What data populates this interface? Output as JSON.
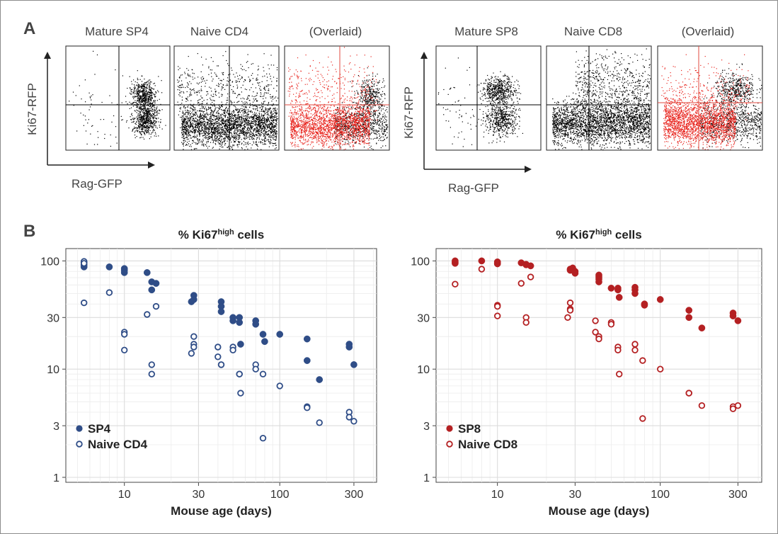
{
  "panel_a": {
    "label": "A",
    "left_group": {
      "y_axis_label": "Ki67-RFP",
      "x_axis_label": "Rag-GFP",
      "plots": [
        {
          "title": "Mature SP4"
        },
        {
          "title": "Naive CD4"
        },
        {
          "title": "(Overlaid)"
        }
      ]
    },
    "right_group": {
      "y_axis_label": "Ki67-RFP",
      "x_axis_label": "Rag-GFP",
      "plots": [
        {
          "title": "Mature SP8"
        },
        {
          "title": "Naive CD8"
        },
        {
          "title": "(Overlaid)"
        }
      ]
    },
    "colors": {
      "mature": "#000000",
      "naive": "#e8251e",
      "gate_line": "#000000",
      "gate_line_overlay": "#e04a3f"
    }
  },
  "panel_b": {
    "label": "B",
    "colors": {
      "cd4": "#2f4d87",
      "cd8": "#b42022"
    }
  },
  "chart_data": [
    {
      "type": "scatter",
      "title": "% Ki67",
      "title_sup": "high",
      "title_suffix": " cells",
      "xlabel": "Mouse age (days)",
      "ylabel": "",
      "x_scale": "log",
      "y_scale": "log",
      "xlim": [
        4.2,
        420
      ],
      "ylim": [
        0.9,
        130
      ],
      "xticks": [
        10,
        30,
        100,
        300
      ],
      "yticks": [
        1,
        3,
        10,
        30,
        100
      ],
      "grid": true,
      "legend_position": "bottom-left",
      "series": [
        {
          "name": "SP4",
          "marker": "filled",
          "color": "#2f4d87",
          "points": [
            [
              5.5,
              97
            ],
            [
              5.5,
              92
            ],
            [
              5.5,
              88
            ],
            [
              8,
              88
            ],
            [
              10,
              85
            ],
            [
              10,
              82
            ],
            [
              10,
              78
            ],
            [
              14,
              78
            ],
            [
              15,
              64
            ],
            [
              15,
              54
            ],
            [
              16,
              62
            ],
            [
              28,
              48
            ],
            [
              28,
              44
            ],
            [
              27,
              42
            ],
            [
              42,
              42
            ],
            [
              42,
              38
            ],
            [
              42,
              34
            ],
            [
              50,
              30
            ],
            [
              50,
              28
            ],
            [
              55,
              30
            ],
            [
              55,
              27
            ],
            [
              70,
              28
            ],
            [
              70,
              26
            ],
            [
              56,
              17
            ],
            [
              78,
              21
            ],
            [
              80,
              18
            ],
            [
              100,
              21
            ],
            [
              150,
              19
            ],
            [
              150,
              12
            ],
            [
              180,
              8
            ],
            [
              280,
              17
            ],
            [
              280,
              16
            ],
            [
              300,
              11
            ]
          ]
        },
        {
          "name": "Naive CD4",
          "marker": "open",
          "color": "#2f4d87",
          "points": [
            [
              5.5,
              99
            ],
            [
              5.5,
              95
            ],
            [
              5.5,
              41
            ],
            [
              8,
              51
            ],
            [
              10,
              22
            ],
            [
              10,
              21
            ],
            [
              10,
              15
            ],
            [
              14,
              32
            ],
            [
              15,
              11
            ],
            [
              15,
              9
            ],
            [
              16,
              38
            ],
            [
              28,
              20
            ],
            [
              28,
              17
            ],
            [
              28,
              16
            ],
            [
              27,
              14
            ],
            [
              40,
              16
            ],
            [
              40,
              13
            ],
            [
              42,
              11
            ],
            [
              42,
              11
            ],
            [
              50,
              16
            ],
            [
              50,
              15
            ],
            [
              55,
              9
            ],
            [
              55,
              9
            ],
            [
              56,
              6
            ],
            [
              70,
              11
            ],
            [
              70,
              10
            ],
            [
              78,
              9
            ],
            [
              78,
              2.3
            ],
            [
              100,
              7
            ],
            [
              150,
              4.5
            ],
            [
              150,
              4.4
            ],
            [
              180,
              3.2
            ],
            [
              280,
              4
            ],
            [
              280,
              3.6
            ],
            [
              300,
              3.3
            ]
          ]
        }
      ]
    },
    {
      "type": "scatter",
      "title": "% Ki67",
      "title_sup": "high",
      "title_suffix": " cells",
      "xlabel": "Mouse age (days)",
      "ylabel": "",
      "x_scale": "log",
      "y_scale": "log",
      "xlim": [
        4.2,
        420
      ],
      "ylim": [
        0.9,
        130
      ],
      "xticks": [
        10,
        30,
        100,
        300
      ],
      "yticks": [
        1,
        3,
        10,
        30,
        100
      ],
      "grid": true,
      "legend_position": "bottom-left",
      "series": [
        {
          "name": "SP8",
          "marker": "filled",
          "color": "#b42022",
          "points": [
            [
              5.5,
              100
            ],
            [
              5.5,
              97
            ],
            [
              5.5,
              95
            ],
            [
              8,
              100
            ],
            [
              10,
              98
            ],
            [
              10,
              96
            ],
            [
              10,
              94
            ],
            [
              14,
              96
            ],
            [
              15,
              93
            ],
            [
              15,
              92
            ],
            [
              16,
              90
            ],
            [
              28,
              84
            ],
            [
              28,
              82
            ],
            [
              29,
              86
            ],
            [
              30,
              80
            ],
            [
              30,
              77
            ],
            [
              42,
              74
            ],
            [
              42,
              71
            ],
            [
              42,
              68
            ],
            [
              42,
              64
            ],
            [
              50,
              56
            ],
            [
              55,
              56
            ],
            [
              55,
              54
            ],
            [
              56,
              46
            ],
            [
              70,
              57
            ],
            [
              70,
              54
            ],
            [
              70,
              50
            ],
            [
              80,
              40
            ],
            [
              80,
              39
            ],
            [
              100,
              44
            ],
            [
              150,
              35
            ],
            [
              150,
              30
            ],
            [
              180,
              24
            ],
            [
              280,
              33
            ],
            [
              280,
              31
            ],
            [
              300,
              28
            ]
          ]
        },
        {
          "name": "Naive CD8",
          "marker": "open",
          "color": "#b42022",
          "points": [
            [
              5.5,
              61
            ],
            [
              8,
              84
            ],
            [
              10,
              39
            ],
            [
              10,
              38
            ],
            [
              10,
              31
            ],
            [
              14,
              62
            ],
            [
              15,
              30
            ],
            [
              15,
              27
            ],
            [
              16,
              71
            ],
            [
              28,
              41
            ],
            [
              28,
              36
            ],
            [
              28,
              35
            ],
            [
              27,
              30
            ],
            [
              40,
              28
            ],
            [
              40,
              22
            ],
            [
              42,
              20
            ],
            [
              42,
              19
            ],
            [
              50,
              27
            ],
            [
              50,
              26
            ],
            [
              55,
              16
            ],
            [
              55,
              15
            ],
            [
              56,
              9
            ],
            [
              70,
              17
            ],
            [
              70,
              15
            ],
            [
              78,
              12
            ],
            [
              78,
              3.5
            ],
            [
              100,
              10
            ],
            [
              150,
              6
            ],
            [
              150,
              6
            ],
            [
              180,
              4.6
            ],
            [
              280,
              4.5
            ],
            [
              280,
              4.3
            ],
            [
              300,
              4.6
            ]
          ]
        }
      ]
    }
  ]
}
